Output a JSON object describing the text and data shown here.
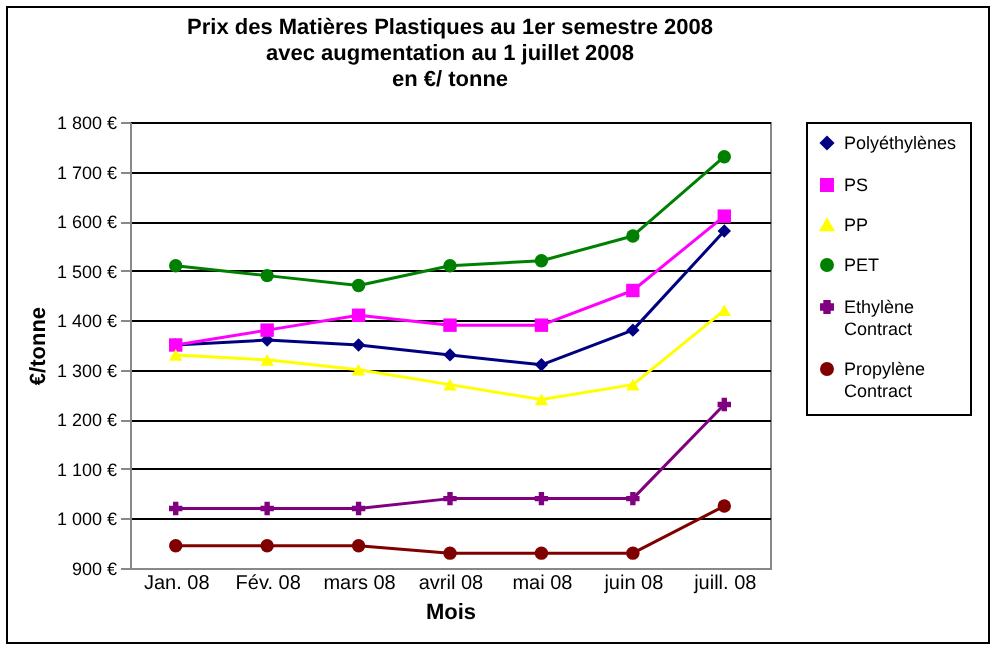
{
  "chart_data": {
    "type": "line",
    "title": "Prix des Matières Plastiques au 1er semestre 2008\navec augmentation au 1 juillet 2008\nen €/ tonne",
    "xlabel": "Mois",
    "ylabel": "€/tonne",
    "categories": [
      "Jan. 08",
      "Fév. 08",
      "mars 08",
      "avril 08",
      "mai 08",
      "juin 08",
      "juill. 08"
    ],
    "series": [
      {
        "name": "Polyéthylènes",
        "color": "#000080",
        "marker": "diamond",
        "values": [
          1350,
          1360,
          1350,
          1330,
          1310,
          1380,
          1580
        ]
      },
      {
        "name": "PS",
        "color": "#ff00ff",
        "marker": "square",
        "values": [
          1350,
          1380,
          1410,
          1390,
          1390,
          1460,
          1610
        ]
      },
      {
        "name": "PP",
        "color": "#ffff00",
        "marker": "triangle",
        "values": [
          1330,
          1320,
          1300,
          1270,
          1240,
          1270,
          1420
        ]
      },
      {
        "name": "PET",
        "color": "#008000",
        "marker": "circle",
        "values": [
          1510,
          1490,
          1470,
          1510,
          1520,
          1570,
          1730
        ]
      },
      {
        "name": "Ethylène Contract",
        "color": "#800080",
        "marker": "cross",
        "values": [
          1020,
          1020,
          1020,
          1040,
          1040,
          1040,
          1230
        ]
      },
      {
        "name": "Propylène Contract",
        "color": "#800000",
        "marker": "circle",
        "values": [
          945,
          945,
          945,
          930,
          930,
          930,
          1025
        ]
      }
    ],
    "ylim": [
      900,
      1800
    ],
    "yticks": [
      {
        "value": 900,
        "label": "900 €"
      },
      {
        "value": 1000,
        "label": "1 000 €"
      },
      {
        "value": 1100,
        "label": "1 100 €"
      },
      {
        "value": 1200,
        "label": "1 200 €"
      },
      {
        "value": 1300,
        "label": "1 300 €"
      },
      {
        "value": 1400,
        "label": "1 400 €"
      },
      {
        "value": 1500,
        "label": "1 500 €"
      },
      {
        "value": 1600,
        "label": "1 600 €"
      },
      {
        "value": 1700,
        "label": "1 700 €"
      },
      {
        "value": 1800,
        "label": "1 800 €"
      }
    ],
    "grid": "y",
    "legend": "right"
  }
}
